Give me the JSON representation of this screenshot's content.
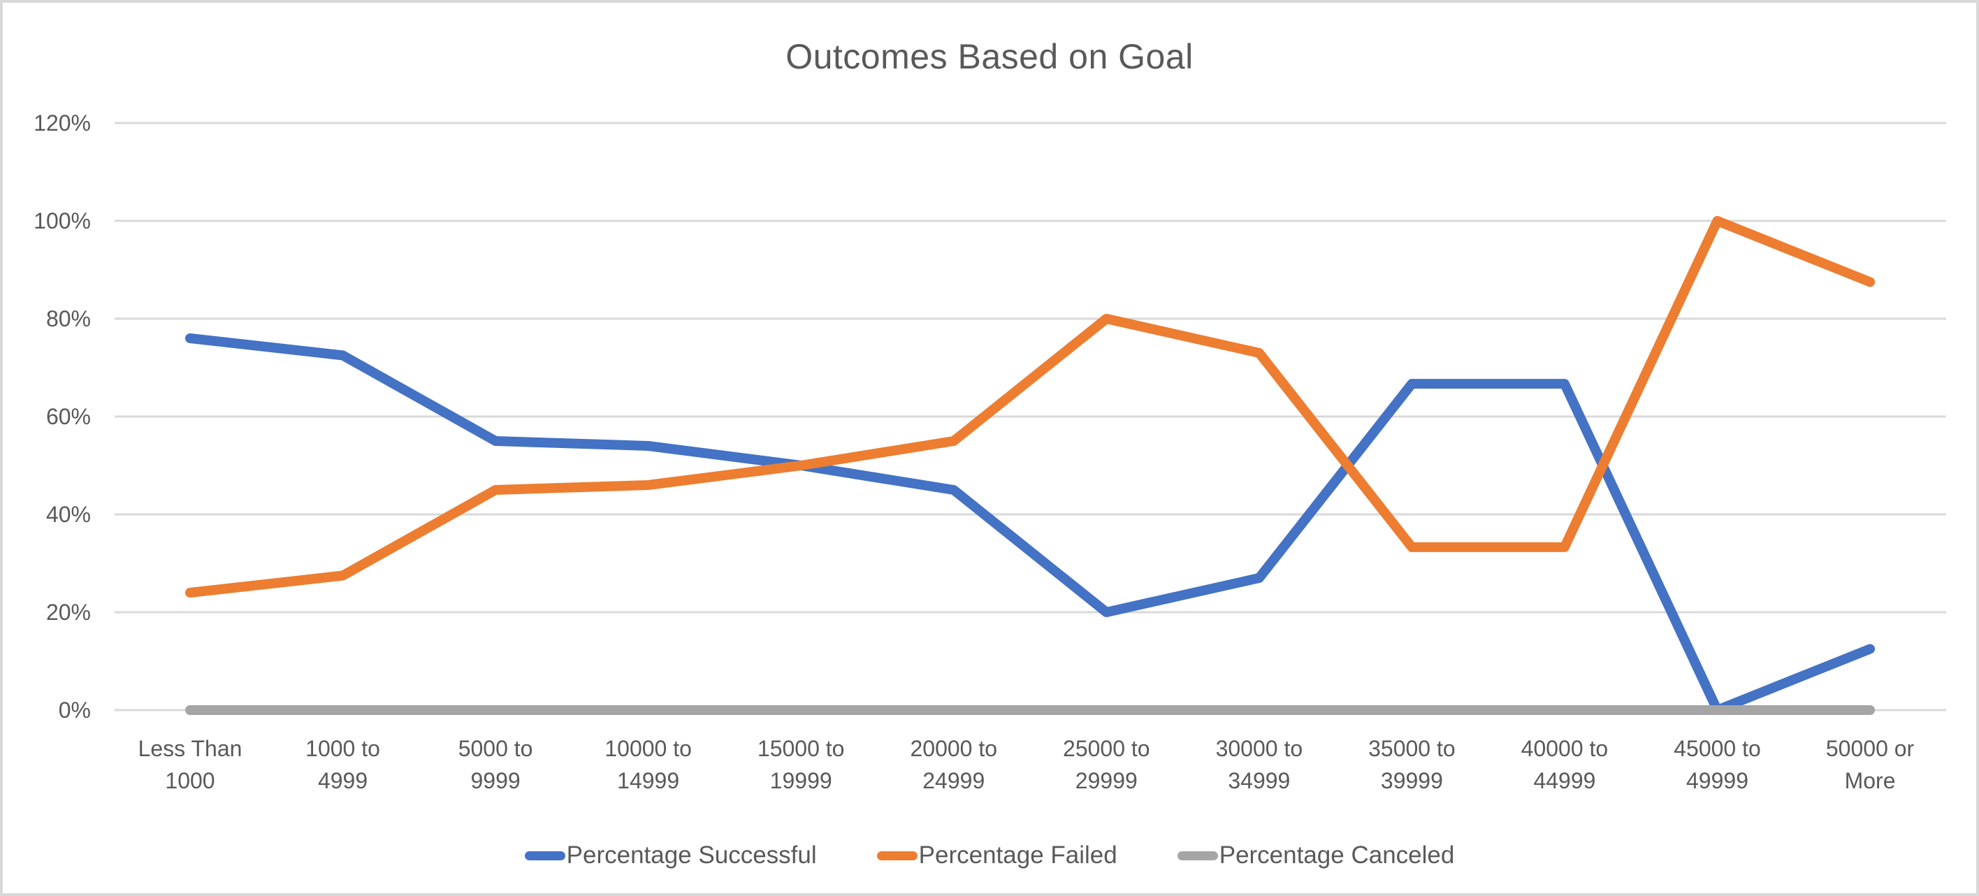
{
  "title": "Outcomes Based on Goal",
  "colors": {
    "successful": "#4472C4",
    "failed": "#ED7D31",
    "canceled": "#A5A5A5",
    "gridline": "#D9D9D9",
    "axis_text": "#595959",
    "title_text": "#595959",
    "border": "#D8D8D8",
    "background": "#FFFFFF"
  },
  "chart_data": {
    "type": "line",
    "title": "Outcomes Based on Goal",
    "xlabel": "",
    "ylabel": "",
    "ylim": [
      0,
      120
    ],
    "ytick_step": 20,
    "grid": true,
    "legend_position": "bottom",
    "y_tick_labels": [
      "0%",
      "20%",
      "40%",
      "60%",
      "80%",
      "100%",
      "120%"
    ],
    "categories": [
      "Less Than 1000",
      "1000 to 4999",
      "5000 to 9999",
      "10000 to 14999",
      "15000 to 19999",
      "20000 to 24999",
      "25000 to 29999",
      "30000 to 34999",
      "35000 to 39999",
      "40000 to 44999",
      "45000 to 49999",
      "50000 or More"
    ],
    "category_label_lines": [
      [
        "Less Than",
        "1000"
      ],
      [
        "1000 to",
        "4999"
      ],
      [
        "5000 to",
        "9999"
      ],
      [
        "10000 to",
        "14999"
      ],
      [
        "15000 to",
        "19999"
      ],
      [
        "20000 to",
        "24999"
      ],
      [
        "25000 to",
        "29999"
      ],
      [
        "30000 to",
        "34999"
      ],
      [
        "35000 to",
        "39999"
      ],
      [
        "40000 to",
        "44999"
      ],
      [
        "45000 to",
        "49999"
      ],
      [
        "50000 or",
        "More"
      ]
    ],
    "series": [
      {
        "name": "Percentage Successful",
        "color": "#4472C4",
        "values": [
          76,
          72.5,
          55,
          54,
          50,
          45,
          20,
          27,
          66.7,
          66.7,
          0,
          12.5
        ]
      },
      {
        "name": "Percentage Failed",
        "color": "#ED7D31",
        "values": [
          24,
          27.5,
          45,
          46,
          50,
          55,
          80,
          73,
          33.3,
          33.3,
          100,
          87.5
        ]
      },
      {
        "name": "Percentage Canceled",
        "color": "#A5A5A5",
        "values": [
          0,
          0,
          0,
          0,
          0,
          0,
          0,
          0,
          0,
          0,
          0,
          0
        ]
      }
    ]
  }
}
